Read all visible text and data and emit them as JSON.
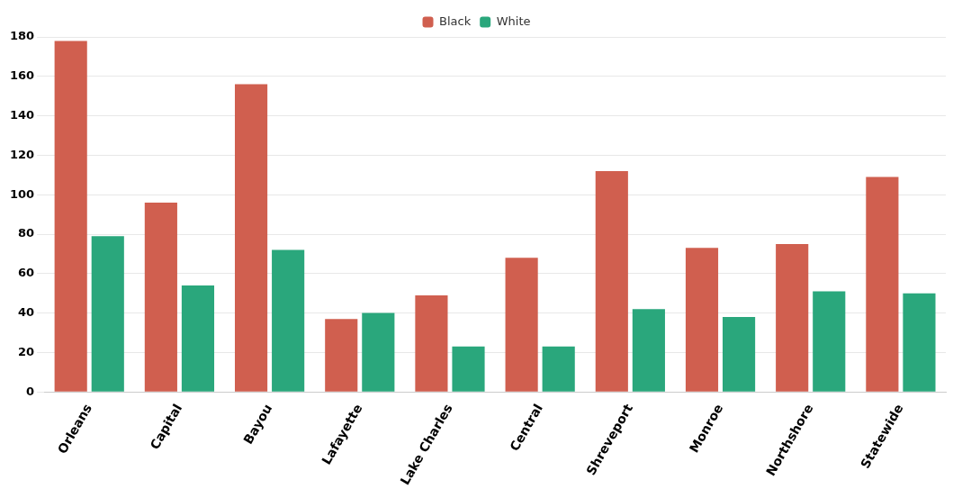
{
  "chart_data": {
    "type": "bar",
    "categories": [
      "Orleans",
      "Capital",
      "Bayou",
      "Lafayette",
      "Lake Charles",
      "Central",
      "Shreveport",
      "Monroe",
      "Northshore",
      "Statewide"
    ],
    "series": [
      {
        "name": "Black",
        "color": "#d05f4f",
        "values": [
          178,
          96,
          156,
          37,
          49,
          68,
          112,
          73,
          75,
          109
        ]
      },
      {
        "name": "White",
        "color": "#2aa77c",
        "values": [
          79,
          54,
          72,
          40,
          23,
          23,
          42,
          38,
          51,
          50
        ]
      }
    ],
    "ylim": [
      0,
      180
    ],
    "yticks": [
      0,
      20,
      40,
      60,
      80,
      100,
      120,
      140,
      160,
      180
    ],
    "grid": "y",
    "legend": "top"
  }
}
